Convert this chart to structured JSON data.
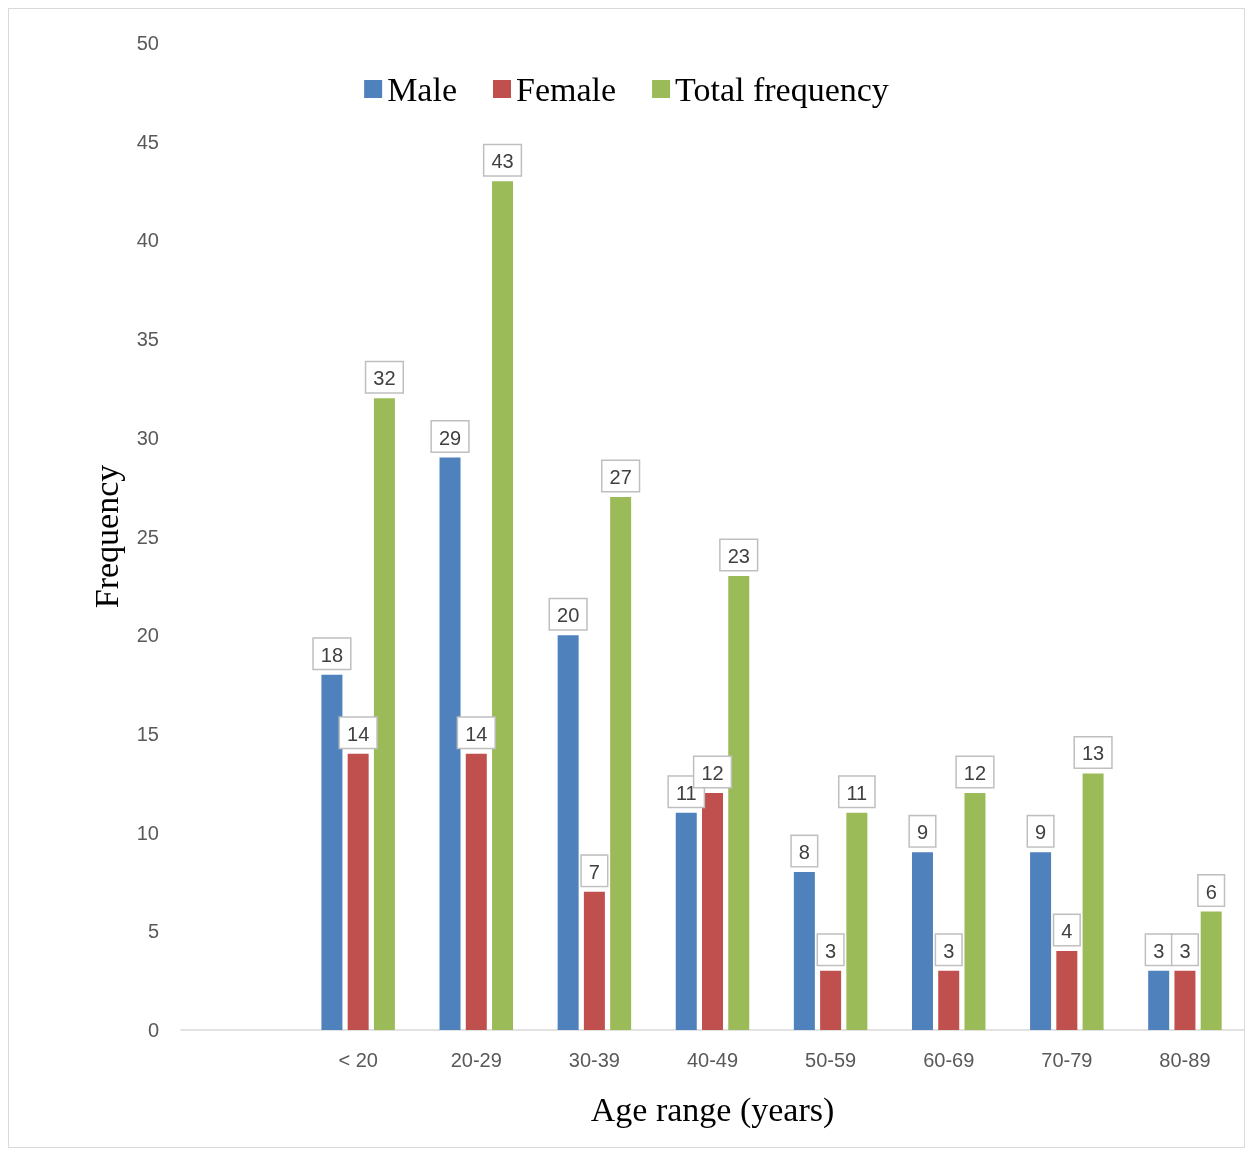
{
  "chart_data": {
    "type": "bar",
    "xlabel": "Age range (years)",
    "ylabel": "Frequency",
    "categories": [
      null,
      "< 20",
      "20-29",
      "30-39",
      "40-49",
      "50-59",
      "60-69",
      "70-79",
      "80-89"
    ],
    "series": [
      {
        "name": "Male",
        "color": "#4f81bd",
        "values": [
          null,
          18,
          29,
          20,
          11,
          8,
          9,
          9,
          3
        ]
      },
      {
        "name": "Female",
        "color": "#c0504d",
        "values": [
          null,
          14,
          14,
          7,
          12,
          3,
          3,
          4,
          3
        ]
      },
      {
        "name": "Total frequency",
        "color": "#9bbb59",
        "values": [
          null,
          32,
          43,
          27,
          23,
          11,
          12,
          13,
          6
        ]
      }
    ],
    "ylim": [
      0,
      50
    ],
    "yticks": [
      0,
      5,
      10,
      15,
      20,
      25,
      30,
      35,
      40,
      45,
      50
    ],
    "grid": false,
    "legend": "top",
    "data_labels": true
  }
}
